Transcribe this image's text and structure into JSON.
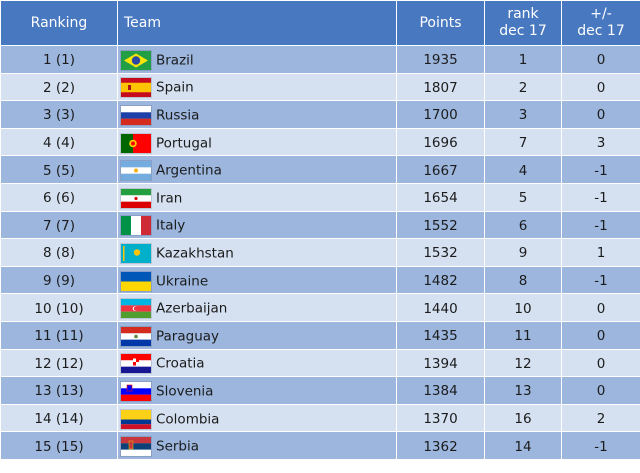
{
  "table": {
    "headers": {
      "ranking": "Ranking",
      "team": "Team",
      "points": "Points",
      "rank_dec_line1": "rank",
      "rank_dec_line2": "dec 17",
      "diff_line1": "+/-",
      "diff_line2": "dec 17"
    },
    "rows": [
      {
        "ranking": "1 (1)",
        "team": "Brazil",
        "flag_icon": "brazil-flag-icon",
        "points": "1935",
        "rank_dec17": "1",
        "diff": "0"
      },
      {
        "ranking": "2 (2)",
        "team": "Spain",
        "flag_icon": "spain-flag-icon",
        "points": "1807",
        "rank_dec17": "2",
        "diff": "0"
      },
      {
        "ranking": "3 (3)",
        "team": "Russia",
        "flag_icon": "russia-flag-icon",
        "points": "1700",
        "rank_dec17": "3",
        "diff": "0"
      },
      {
        "ranking": "4 (4)",
        "team": "Portugal",
        "flag_icon": "portugal-flag-icon",
        "points": "1696",
        "rank_dec17": "7",
        "diff": "3"
      },
      {
        "ranking": "5 (5)",
        "team": "Argentina",
        "flag_icon": "argentina-flag-icon",
        "points": "1667",
        "rank_dec17": "4",
        "diff": "-1"
      },
      {
        "ranking": "6 (6)",
        "team": "Iran",
        "flag_icon": "iran-flag-icon",
        "points": "1654",
        "rank_dec17": "5",
        "diff": "-1"
      },
      {
        "ranking": "7 (7)",
        "team": "Italy",
        "flag_icon": "italy-flag-icon",
        "points": "1552",
        "rank_dec17": "6",
        "diff": "-1"
      },
      {
        "ranking": "8 (8)",
        "team": "Kazakhstan",
        "flag_icon": "kazakhstan-flag-icon",
        "points": "1532",
        "rank_dec17": "9",
        "diff": "1"
      },
      {
        "ranking": "9 (9)",
        "team": "Ukraine",
        "flag_icon": "ukraine-flag-icon",
        "points": "1482",
        "rank_dec17": "8",
        "diff": "-1"
      },
      {
        "ranking": "10 (10)",
        "team": "Azerbaijan",
        "flag_icon": "azerbaijan-flag-icon",
        "points": "1440",
        "rank_dec17": "10",
        "diff": "0"
      },
      {
        "ranking": "11 (11)",
        "team": "Paraguay",
        "flag_icon": "paraguay-flag-icon",
        "points": "1435",
        "rank_dec17": "11",
        "diff": "0"
      },
      {
        "ranking": "12 (12)",
        "team": "Croatia",
        "flag_icon": "croatia-flag-icon",
        "points": "1394",
        "rank_dec17": "12",
        "diff": "0"
      },
      {
        "ranking": "13 (13)",
        "team": "Slovenia",
        "flag_icon": "slovenia-flag-icon",
        "points": "1384",
        "rank_dec17": "13",
        "diff": "0"
      },
      {
        "ranking": "14 (14)",
        "team": "Colombia",
        "flag_icon": "colombia-flag-icon",
        "points": "1370",
        "rank_dec17": "16",
        "diff": "2"
      },
      {
        "ranking": "15 (15)",
        "team": "Serbia",
        "flag_icon": "serbia-flag-icon",
        "points": "1362",
        "rank_dec17": "14",
        "diff": "-1"
      }
    ]
  },
  "colors": {
    "header_bg": "#4878c0",
    "row_dark": "#9cb6de",
    "row_light": "#d5e1f1"
  }
}
